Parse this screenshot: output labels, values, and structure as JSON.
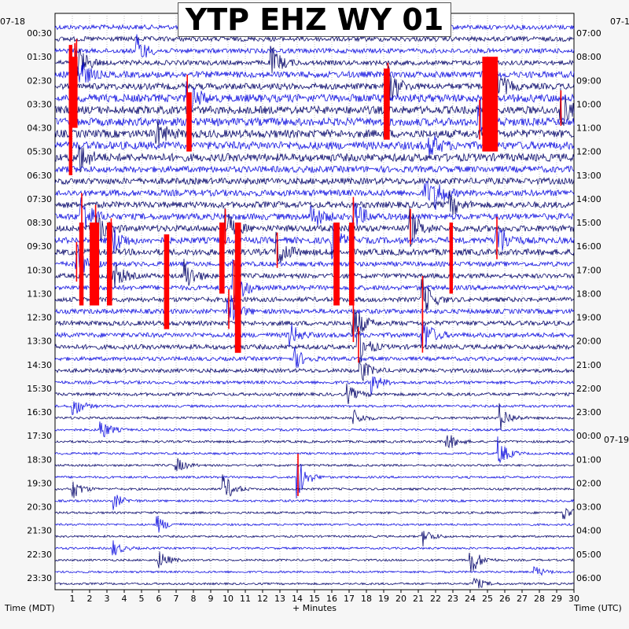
{
  "title": "YTP EHZ WY 01",
  "left_date": "07-18",
  "right_date": "07-1",
  "next_day_label": "07-19",
  "xlabel_left": "Time (MDT)",
  "xlabel_center": "+ Minutes",
  "xlabel_right": "Time (UTC)",
  "colors": {
    "trace_1": "#0b0b6e",
    "trace_2": "#1414e0",
    "event": "#ff0000",
    "grid": "#808080",
    "background": "#ffffff"
  },
  "chart_data": {
    "type": "line",
    "description_units": "helicorder; each row = 30 minutes",
    "x_ticks": [
      "1",
      "2",
      "3",
      "4",
      "5",
      "6",
      "7",
      "8",
      "9",
      "10",
      "11",
      "12",
      "13",
      "14",
      "15",
      "16",
      "17",
      "18",
      "19",
      "20",
      "21",
      "22",
      "23",
      "24",
      "25",
      "26",
      "27",
      "28",
      "29",
      "30"
    ],
    "xlim": [
      0,
      30
    ],
    "left_labels": [
      "00:30",
      "01:30",
      "02:30",
      "03:30",
      "04:30",
      "05:30",
      "06:30",
      "07:30",
      "08:30",
      "09:30",
      "10:30",
      "11:30",
      "12:30",
      "13:30",
      "14:30",
      "15:30",
      "16:30",
      "17:30",
      "18:30",
      "19:30",
      "20:30",
      "21:30",
      "22:30",
      "23:30"
    ],
    "right_labels": [
      "07:00",
      "08:00",
      "09:00",
      "10:00",
      "11:00",
      "12:00",
      "13:00",
      "14:00",
      "15:00",
      "16:00",
      "17:00",
      "18:00",
      "19:00",
      "20:00",
      "21:00",
      "22:00",
      "23:00",
      "00:00",
      "01:00",
      "02:00",
      "03:00",
      "04:00",
      "05:00",
      "06:00"
    ],
    "rows_per_hour": 2,
    "total_rows": 48,
    "noise_levels": [
      3,
      3,
      3,
      3,
      4,
      4,
      5,
      5,
      5,
      5,
      5,
      5,
      4,
      4,
      4,
      4,
      4,
      4,
      4,
      4,
      3,
      3,
      3,
      3,
      3,
      3,
      3,
      3,
      2.5,
      2.5,
      2,
      2,
      1.6,
      1.6,
      1.5,
      1.5,
      1.4,
      1.4,
      1.4,
      1.4,
      1.4,
      1.4,
      1.3,
      1.3,
      1.3,
      1.3,
      1.3,
      1.3
    ],
    "events": [
      {
        "row": 2,
        "minute": 4.7,
        "amp": 20
      },
      {
        "row": 3,
        "minute": 1.2,
        "amp": 30
      },
      {
        "row": 3,
        "minute": 12.5,
        "amp": 22
      },
      {
        "row": 4,
        "minute": 1.1,
        "amp": 40
      },
      {
        "row": 5,
        "minute": 19.2,
        "amp": 30
      },
      {
        "row": 5,
        "minute": 25.3,
        "amp": 35
      },
      {
        "row": 6,
        "minute": 7.6,
        "amp": 30
      },
      {
        "row": 7,
        "minute": 29.2,
        "amp": 25
      },
      {
        "row": 8,
        "minute": 24.5,
        "amp": 28
      },
      {
        "row": 9,
        "minute": 5.8,
        "amp": 20
      },
      {
        "row": 10,
        "minute": 21.6,
        "amp": 18
      },
      {
        "row": 11,
        "minute": 1.4,
        "amp": 20
      },
      {
        "row": 14,
        "minute": 21.4,
        "amp": 18
      },
      {
        "row": 14,
        "minute": 22.0,
        "amp": 15
      },
      {
        "row": 15,
        "minute": 22.7,
        "amp": 20
      },
      {
        "row": 16,
        "minute": 1.5,
        "amp": 30
      },
      {
        "row": 16,
        "minute": 14.8,
        "amp": 20
      },
      {
        "row": 16,
        "minute": 17.2,
        "amp": 25
      },
      {
        "row": 17,
        "minute": 2.3,
        "amp": 30
      },
      {
        "row": 17,
        "minute": 9.8,
        "amp": 25
      },
      {
        "row": 17,
        "minute": 20.5,
        "amp": 25
      },
      {
        "row": 18,
        "minute": 3.2,
        "amp": 28
      },
      {
        "row": 18,
        "minute": 16.0,
        "amp": 22
      },
      {
        "row": 18,
        "minute": 25.5,
        "amp": 30
      },
      {
        "row": 19,
        "minute": 12.8,
        "amp": 25
      },
      {
        "row": 20,
        "minute": 1.2,
        "amp": 28
      },
      {
        "row": 21,
        "minute": 3.3,
        "amp": 22
      },
      {
        "row": 21,
        "minute": 7.5,
        "amp": 22
      },
      {
        "row": 22,
        "minute": 10.3,
        "amp": 35
      },
      {
        "row": 23,
        "minute": 21.2,
        "amp": 30
      },
      {
        "row": 24,
        "minute": 10.0,
        "amp": 28
      },
      {
        "row": 25,
        "minute": 17.2,
        "amp": 30
      },
      {
        "row": 26,
        "minute": 21.2,
        "amp": 28
      },
      {
        "row": 26,
        "minute": 13.5,
        "amp": 18
      },
      {
        "row": 27,
        "minute": 17.5,
        "amp": 25
      },
      {
        "row": 28,
        "minute": 13.8,
        "amp": 15
      },
      {
        "row": 29,
        "minute": 17.6,
        "amp": 18
      },
      {
        "row": 30,
        "minute": 18.3,
        "amp": 14
      },
      {
        "row": 31,
        "minute": 16.9,
        "amp": 12
      },
      {
        "row": 32,
        "minute": 1.0,
        "amp": 16
      },
      {
        "row": 33,
        "minute": 25.7,
        "amp": 18
      },
      {
        "row": 33,
        "minute": 17.2,
        "amp": 12
      },
      {
        "row": 34,
        "minute": 2.6,
        "amp": 16
      },
      {
        "row": 35,
        "minute": 22.6,
        "amp": 14
      },
      {
        "row": 36,
        "minute": 25.6,
        "amp": 20
      },
      {
        "row": 37,
        "minute": 7.0,
        "amp": 10
      },
      {
        "row": 38,
        "minute": 14.0,
        "amp": 30
      },
      {
        "row": 39,
        "minute": 9.7,
        "amp": 22
      },
      {
        "row": 39,
        "minute": 1.0,
        "amp": 14
      },
      {
        "row": 40,
        "minute": 3.4,
        "amp": 10
      },
      {
        "row": 41,
        "minute": 29.4,
        "amp": 10
      },
      {
        "row": 42,
        "minute": 5.9,
        "amp": 12
      },
      {
        "row": 43,
        "minute": 21.2,
        "amp": 14
      },
      {
        "row": 44,
        "minute": 3.3,
        "amp": 12
      },
      {
        "row": 45,
        "minute": 5.9,
        "amp": 16
      },
      {
        "row": 45,
        "minute": 24.0,
        "amp": 22
      },
      {
        "row": 46,
        "minute": 27.7,
        "amp": 8
      },
      {
        "row": 47,
        "minute": 24.2,
        "amp": 10
      }
    ],
    "clipped_blocks": [
      {
        "row_start": 3,
        "row_end": 8,
        "minute": 0.8,
        "width_min": 0.5
      },
      {
        "row_start": 6,
        "row_end": 10,
        "minute": 7.6,
        "width_min": 0.3
      },
      {
        "row_start": 3,
        "row_end": 10,
        "minute": 24.7,
        "width_min": 0.9
      },
      {
        "row_start": 4,
        "row_end": 9,
        "minute": 19.0,
        "width_min": 0.35
      },
      {
        "row_start": 17,
        "row_end": 23,
        "minute": 1.4,
        "width_min": 0.25
      },
      {
        "row_start": 17,
        "row_end": 23,
        "minute": 2.0,
        "width_min": 0.55
      },
      {
        "row_start": 17,
        "row_end": 23,
        "minute": 3.0,
        "width_min": 0.3
      },
      {
        "row_start": 18,
        "row_end": 25,
        "minute": 6.3,
        "width_min": 0.3
      },
      {
        "row_start": 17,
        "row_end": 22,
        "minute": 9.5,
        "width_min": 0.3
      },
      {
        "row_start": 17,
        "row_end": 27,
        "minute": 10.4,
        "width_min": 0.35
      },
      {
        "row_start": 17,
        "row_end": 23,
        "minute": 16.1,
        "width_min": 0.35
      },
      {
        "row_start": 17,
        "row_end": 23,
        "minute": 17.0,
        "width_min": 0.3
      },
      {
        "row_start": 17,
        "row_end": 22,
        "minute": 22.8,
        "width_min": 0.2
      },
      {
        "row_start": 2,
        "row_end": 12,
        "minute": 0.8,
        "width_min": 0.2
      }
    ]
  }
}
